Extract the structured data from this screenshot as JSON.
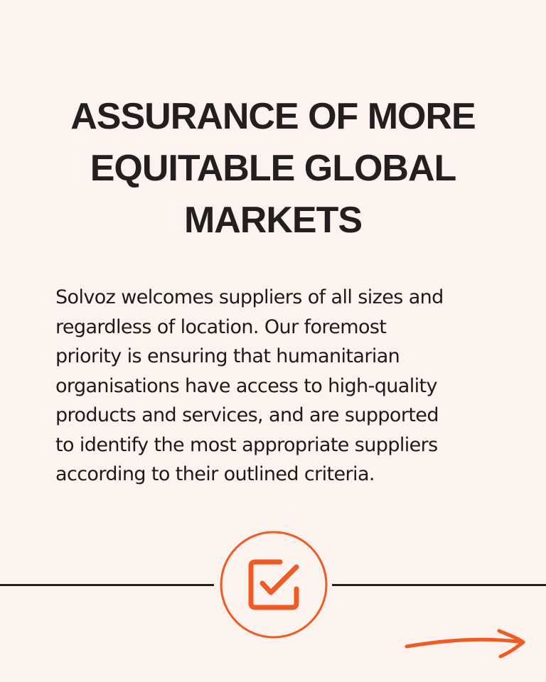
{
  "headline": {
    "lines": [
      "ASSURANCE OF MORE",
      "EQUITABLE GLOBAL",
      "MARKETS"
    ]
  },
  "body": {
    "lines": [
      "Solvoz welcomes suppliers of all sizes and",
      "regardless of location. Our foremost",
      "priority is ensuring that humanitarian",
      "organisations have access to high-quality",
      "products and services, and are supported",
      "to identify the most appropriate suppliers",
      "according to their outlined criteria."
    ]
  },
  "icons": {
    "badge": "checkbox-check-icon",
    "next": "arrow-right-icon"
  },
  "colors": {
    "background": "#fdf3ee",
    "text": "#231f1e",
    "accent": "#f05a24"
  }
}
